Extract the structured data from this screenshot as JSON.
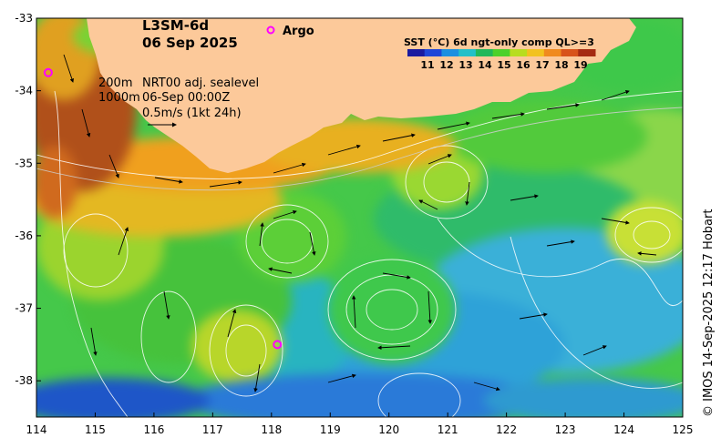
{
  "title": {
    "line1": "L3SM-6d",
    "line2": "06 Sep 2025"
  },
  "argo_label": "Argo",
  "legend": {
    "title": "SST (°C) 6d ngt-only comp QL>=3",
    "ticks": [
      "11",
      "12",
      "13",
      "14",
      "15",
      "16",
      "17",
      "18",
      "19"
    ],
    "colors": [
      "#1a1aa0",
      "#1f46d8",
      "#1c8fe0",
      "#22c0c8",
      "#21b85a",
      "#4cd12a",
      "#b8dd20",
      "#f2c21f",
      "#f08a1e",
      "#d8521a",
      "#a52a12"
    ]
  },
  "annotations": {
    "isobath_200": "200m",
    "isobath_1000": "1000m",
    "nrt_label": "NRT00 adj. sealevel",
    "time_label": "06-Sep 00:00Z",
    "scale_label": "0.5m/s (1kt 24h)"
  },
  "axes": {
    "x_ticks": [
      "114",
      "115",
      "116",
      "117",
      "118",
      "119",
      "120",
      "121",
      "122",
      "123",
      "124",
      "125"
    ],
    "y_ticks": [
      "-33",
      "-34",
      "-35",
      "-36",
      "-37",
      "-38"
    ]
  },
  "credit": "© IMOS 14-Sep-2025 12:17 Hobart",
  "colors": {
    "land": "#fcc99a",
    "argo": "#ff00ff"
  },
  "chart_data": {
    "type": "map",
    "x_range": [
      114,
      125
    ],
    "y_range": [
      -38.5,
      -33
    ],
    "argo_floats": [
      {
        "lon": 114.2,
        "lat": -33.75
      },
      {
        "lon": 118.1,
        "lat": -37.5
      }
    ]
  }
}
